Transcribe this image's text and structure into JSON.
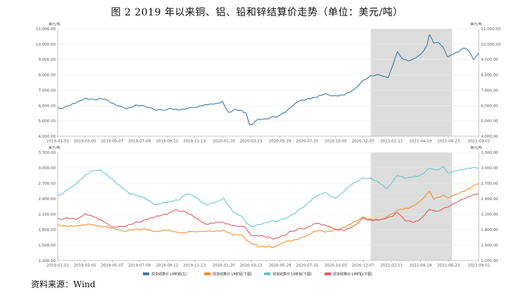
{
  "figure": {
    "title": "图 2   2019 年以来铜、铝、铅和锌结算价走势（单位：美元/吨）",
    "source": "资料来源：Wind"
  },
  "colors": {
    "copper": "#3a7aa3",
    "aluminum": "#f0902a",
    "zinc": "#6cc6c9",
    "lead": "#e05a63",
    "shade": "#dcdcdc",
    "grid": "#ececec"
  },
  "chart_data": [
    {
      "type": "line",
      "title": "",
      "ylabel_left": "美元/吨",
      "ylabel_right": "美元/吨",
      "ylim": [
        4000,
        11000
      ],
      "yticks": [
        4000,
        5000,
        6000,
        7000,
        8000,
        9000,
        10000,
        11000
      ],
      "ytick_labels": [
        "4,000.00",
        "5,000.00",
        "6,000.00",
        "7,000.00",
        "8,000.00",
        "9,000.00",
        "10,000.00",
        "11,000.00"
      ],
      "xlim": [
        "2019-01-01",
        "2021-09-01"
      ],
      "xticks": [
        "2019-01-01",
        "2019-03-05",
        "2019-05-07",
        "2019-07-09",
        "2019-09-11",
        "2019-11-13",
        "2020-01-20",
        "2020-03-23",
        "2020-05-29",
        "2020-07-31",
        "2020-10-05",
        "2020-12-07",
        "2021-02-11",
        "2021-04-19",
        "2021-06-23",
        "2021-09-01"
      ],
      "shaded_range": [
        "2020-12-25",
        "2021-07-01"
      ],
      "series": [
        {
          "key": "copper",
          "name": "现货结算价:LME铜(左)",
          "points": [
            [
              "2019-01-01",
              5800
            ],
            [
              "2019-01-20",
              5900
            ],
            [
              "2019-02-15",
              6200
            ],
            [
              "2019-03-05",
              6450
            ],
            [
              "2019-04-01",
              6400
            ],
            [
              "2019-04-20",
              6450
            ],
            [
              "2019-05-07",
              6150
            ],
            [
              "2019-05-25",
              5950
            ],
            [
              "2019-06-10",
              5800
            ],
            [
              "2019-07-01",
              6000
            ],
            [
              "2019-07-25",
              5950
            ],
            [
              "2019-08-10",
              5750
            ],
            [
              "2019-09-01",
              5700
            ],
            [
              "2019-09-20",
              5800
            ],
            [
              "2019-10-10",
              5700
            ],
            [
              "2019-11-01",
              5850
            ],
            [
              "2019-11-20",
              5900
            ],
            [
              "2019-12-10",
              6050
            ],
            [
              "2020-01-05",
              6150
            ],
            [
              "2020-01-17",
              6250
            ],
            [
              "2020-01-31",
              5550
            ],
            [
              "2020-02-15",
              5750
            ],
            [
              "2020-03-01",
              5650
            ],
            [
              "2020-03-12",
              5500
            ],
            [
              "2020-03-20",
              4700
            ],
            [
              "2020-03-25",
              4800
            ],
            [
              "2020-04-10",
              5100
            ],
            [
              "2020-05-01",
              5150
            ],
            [
              "2020-05-29",
              5350
            ],
            [
              "2020-06-20",
              5800
            ],
            [
              "2020-07-10",
              6300
            ],
            [
              "2020-07-31",
              6400
            ],
            [
              "2020-08-20",
              6550
            ],
            [
              "2020-09-10",
              6750
            ],
            [
              "2020-10-05",
              6600
            ],
            [
              "2020-10-25",
              6700
            ],
            [
              "2020-11-15",
              7000
            ],
            [
              "2020-12-07",
              7600
            ],
            [
              "2020-12-25",
              7950
            ],
            [
              "2021-01-15",
              8000
            ],
            [
              "2021-02-03",
              7800
            ],
            [
              "2021-02-11",
              8400
            ],
            [
              "2021-02-25",
              9500
            ],
            [
              "2021-03-10",
              9000
            ],
            [
              "2021-03-25",
              8900
            ],
            [
              "2021-04-19",
              9300
            ],
            [
              "2021-05-04",
              9900
            ],
            [
              "2021-05-10",
              10650
            ],
            [
              "2021-05-20",
              10100
            ],
            [
              "2021-06-01",
              10100
            ],
            [
              "2021-06-10",
              9800
            ],
            [
              "2021-06-20",
              9200
            ],
            [
              "2021-07-01",
              9300
            ],
            [
              "2021-07-15",
              9500
            ],
            [
              "2021-07-30",
              9750
            ],
            [
              "2021-08-10",
              9550
            ],
            [
              "2021-08-20",
              9000
            ],
            [
              "2021-09-01",
              9400
            ]
          ]
        }
      ]
    },
    {
      "type": "line",
      "title": "",
      "ylabel_left": "美元/吨",
      "ylabel_right": "美元/吨",
      "ylim": [
        1200,
        3300
      ],
      "yticks": [
        1200,
        1500,
        1800,
        2100,
        2400,
        2700,
        3000,
        3300
      ],
      "ytick_labels": [
        "1,200.00",
        "1,500.00",
        "1,800.00",
        "2,100.00",
        "2,400.00",
        "2,700.00",
        "3,000.00",
        "3,300.00"
      ],
      "xlim": [
        "2019-01-01",
        "2021-09-01"
      ],
      "xticks": [
        "2019-01-01",
        "2019-03-05",
        "2019-05-07",
        "2019-07-09",
        "2019-09-11",
        "2019-11-13",
        "2020-01-20",
        "2020-03-23",
        "2020-05-29",
        "2020-07-31",
        "2020-10-05",
        "2020-12-07",
        "2021-02-11",
        "2021-04-19",
        "2021-06-23",
        "2021-09-01"
      ],
      "shaded_range": [
        "2020-12-25",
        "2021-07-01"
      ],
      "legend_position": "bottom",
      "series": [
        {
          "key": "aluminum",
          "name": "现货结算价:LME铝(下图)",
          "points": [
            [
              "2019-01-01",
              1880
            ],
            [
              "2019-01-25",
              1870
            ],
            [
              "2019-02-20",
              1880
            ],
            [
              "2019-03-15",
              1900
            ],
            [
              "2019-04-10",
              1860
            ],
            [
              "2019-05-07",
              1830
            ],
            [
              "2019-06-01",
              1770
            ],
            [
              "2019-06-25",
              1800
            ],
            [
              "2019-07-20",
              1810
            ],
            [
              "2019-08-15",
              1760
            ],
            [
              "2019-09-11",
              1790
            ],
            [
              "2019-10-10",
              1730
            ],
            [
              "2019-11-01",
              1760
            ],
            [
              "2019-11-20",
              1760
            ],
            [
              "2019-12-15",
              1770
            ],
            [
              "2020-01-20",
              1780
            ],
            [
              "2020-02-10",
              1700
            ],
            [
              "2020-03-01",
              1690
            ],
            [
              "2020-03-23",
              1530
            ],
            [
              "2020-04-15",
              1470
            ],
            [
              "2020-05-15",
              1460
            ],
            [
              "2020-06-10",
              1560
            ],
            [
              "2020-07-01",
              1600
            ],
            [
              "2020-07-31",
              1680
            ],
            [
              "2020-08-20",
              1780
            ],
            [
              "2020-09-20",
              1760
            ],
            [
              "2020-10-20",
              1830
            ],
            [
              "2020-11-15",
              1940
            ],
            [
              "2020-12-07",
              2040
            ],
            [
              "2020-12-25",
              2000
            ],
            [
              "2021-01-20",
              2000
            ],
            [
              "2021-02-11",
              2100
            ],
            [
              "2021-03-05",
              2200
            ],
            [
              "2021-03-25",
              2220
            ],
            [
              "2021-04-19",
              2350
            ],
            [
              "2021-05-10",
              2550
            ],
            [
              "2021-05-20",
              2400
            ],
            [
              "2021-06-10",
              2460
            ],
            [
              "2021-06-23",
              2420
            ],
            [
              "2021-07-15",
              2500
            ],
            [
              "2021-08-10",
              2600
            ],
            [
              "2021-09-01",
              2700
            ]
          ]
        },
        {
          "key": "zinc",
          "name": "现货结算价:LME锌(下图)",
          "points": [
            [
              "2019-01-01",
              2450
            ],
            [
              "2019-01-20",
              2550
            ],
            [
              "2019-02-15",
              2700
            ],
            [
              "2019-03-05",
              2850
            ],
            [
              "2019-03-25",
              2950
            ],
            [
              "2019-04-10",
              2950
            ],
            [
              "2019-05-07",
              2780
            ],
            [
              "2019-05-25",
              2650
            ],
            [
              "2019-06-15",
              2500
            ],
            [
              "2019-07-09",
              2450
            ],
            [
              "2019-07-25",
              2400
            ],
            [
              "2019-08-15",
              2280
            ],
            [
              "2019-09-11",
              2330
            ],
            [
              "2019-10-10",
              2380
            ],
            [
              "2019-10-25",
              2500
            ],
            [
              "2019-11-13",
              2450
            ],
            [
              "2019-12-10",
              2280
            ],
            [
              "2020-01-05",
              2350
            ],
            [
              "2020-01-20",
              2400
            ],
            [
              "2020-02-10",
              2150
            ],
            [
              "2020-03-01",
              2050
            ],
            [
              "2020-03-23",
              1850
            ],
            [
              "2020-04-10",
              1900
            ],
            [
              "2020-05-01",
              1950
            ],
            [
              "2020-05-29",
              1980
            ],
            [
              "2020-06-20",
              2050
            ],
            [
              "2020-07-15",
              2200
            ],
            [
              "2020-07-31",
              2300
            ],
            [
              "2020-08-20",
              2450
            ],
            [
              "2020-09-10",
              2520
            ],
            [
              "2020-10-05",
              2400
            ],
            [
              "2020-10-25",
              2550
            ],
            [
              "2020-11-15",
              2700
            ],
            [
              "2020-12-07",
              2800
            ],
            [
              "2020-12-25",
              2800
            ],
            [
              "2021-01-15",
              2700
            ],
            [
              "2021-02-01",
              2600
            ],
            [
              "2021-02-25",
              2850
            ],
            [
              "2021-03-15",
              2800
            ],
            [
              "2021-04-19",
              2850
            ],
            [
              "2021-05-10",
              3000
            ],
            [
              "2021-05-25",
              2950
            ],
            [
              "2021-06-10",
              3020
            ],
            [
              "2021-06-23",
              2900
            ],
            [
              "2021-07-15",
              2950
            ],
            [
              "2021-08-10",
              3000
            ],
            [
              "2021-09-01",
              3000
            ]
          ]
        },
        {
          "key": "lead",
          "name": "现货结算价:LME铅(下图)",
          "points": [
            [
              "2019-01-01",
              2000
            ],
            [
              "2019-01-20",
              2020
            ],
            [
              "2019-02-15",
              2000
            ],
            [
              "2019-03-05",
              2100
            ],
            [
              "2019-03-25",
              2050
            ],
            [
              "2019-04-20",
              1950
            ],
            [
              "2019-05-07",
              1850
            ],
            [
              "2019-06-01",
              1860
            ],
            [
              "2019-06-25",
              1920
            ],
            [
              "2019-07-20",
              1980
            ],
            [
              "2019-08-15",
              2050
            ],
            [
              "2019-09-11",
              2100
            ],
            [
              "2019-10-01",
              2180
            ],
            [
              "2019-10-20",
              2150
            ],
            [
              "2019-11-13",
              2050
            ],
            [
              "2019-12-10",
              1900
            ],
            [
              "2020-01-05",
              1950
            ],
            [
              "2020-01-20",
              1930
            ],
            [
              "2020-02-15",
              1870
            ],
            [
              "2020-03-10",
              1850
            ],
            [
              "2020-03-23",
              1680
            ],
            [
              "2020-04-15",
              1680
            ],
            [
              "2020-05-15",
              1620
            ],
            [
              "2020-05-29",
              1650
            ],
            [
              "2020-06-20",
              1750
            ],
            [
              "2020-07-15",
              1820
            ],
            [
              "2020-07-31",
              1830
            ],
            [
              "2020-08-20",
              1930
            ],
            [
              "2020-09-15",
              1880
            ],
            [
              "2020-10-05",
              1800
            ],
            [
              "2020-10-25",
              1780
            ],
            [
              "2020-11-15",
              1860
            ],
            [
              "2020-12-07",
              2020
            ],
            [
              "2020-12-25",
              1980
            ],
            [
              "2021-01-20",
              2000
            ],
            [
              "2021-02-11",
              2050
            ],
            [
              "2021-02-25",
              2130
            ],
            [
              "2021-03-15",
              1980
            ],
            [
              "2021-04-05",
              1950
            ],
            [
              "2021-04-19",
              2000
            ],
            [
              "2021-05-10",
              2200
            ],
            [
              "2021-05-25",
              2150
            ],
            [
              "2021-06-10",
              2200
            ],
            [
              "2021-06-23",
              2250
            ],
            [
              "2021-07-15",
              2350
            ],
            [
              "2021-08-10",
              2450
            ],
            [
              "2021-09-01",
              2500
            ]
          ]
        }
      ]
    }
  ]
}
